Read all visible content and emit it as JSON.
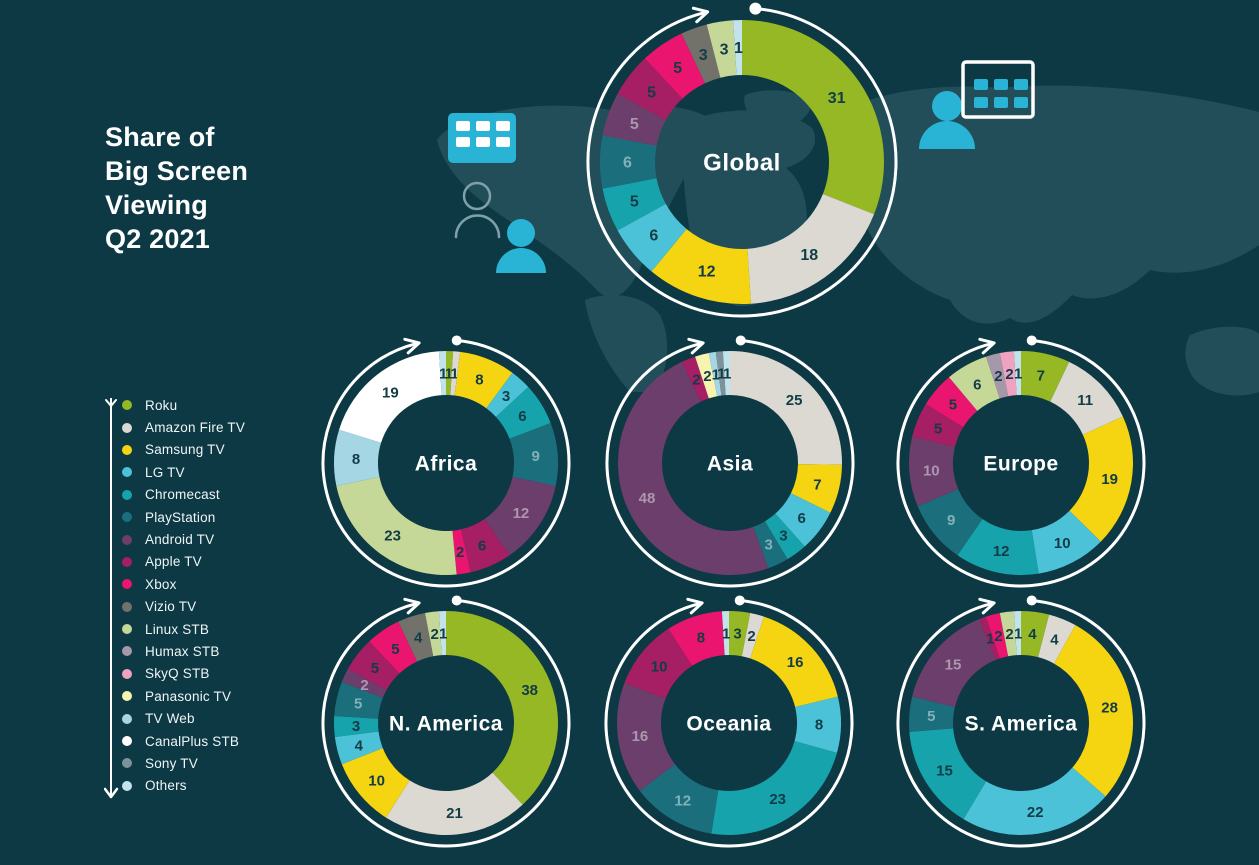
{
  "title": {
    "text": "Share of\nBig Screen\nViewing\nQ2 2021"
  },
  "colors": {
    "background": "#0d3944",
    "map": "#224e5a",
    "ring": "#ffffff",
    "icon_cyan": "#29b4d6",
    "person_outline": "#7fa0a8",
    "value_label_dark": "#123c46",
    "value_label_light": "rgba(255,255,255,0.45)",
    "region_label": "#ffffff"
  },
  "devices": [
    {
      "label": "Roku",
      "color": "#95b824"
    },
    {
      "label": "Amazon Fire TV",
      "color": "#dbd9d2"
    },
    {
      "label": "Samsung TV",
      "color": "#f5d411"
    },
    {
      "label": "LG TV",
      "color": "#4cc2d9"
    },
    {
      "label": "Chromecast",
      "color": "#16a3ac"
    },
    {
      "label": "PlayStation",
      "color": "#1b6f7d"
    },
    {
      "label": "Android TV",
      "color": "#6b3e6b"
    },
    {
      "label": "Apple TV",
      "color": "#a61e63"
    },
    {
      "label": "Xbox",
      "color": "#e9156f"
    },
    {
      "label": "Vizio TV",
      "color": "#72716a"
    },
    {
      "label": "Linux STB",
      "color": "#c5d897"
    },
    {
      "label": "Humax STB",
      "color": "#a697a9"
    },
    {
      "label": "SkyQ STB",
      "color": "#efa3c0"
    },
    {
      "label": "Panasonic TV",
      "color": "#f8f3b0"
    },
    {
      "label": "TV Web",
      "color": "#a4d6e4"
    },
    {
      "label": "CanalPlus STB",
      "color": "#ffffff"
    },
    {
      "label": "Sony TV",
      "color": "#7e929b"
    },
    {
      "label": "Others",
      "color": "#c2e3ec"
    }
  ],
  "light_text_devices": [
    "PlayStation",
    "Android TV"
  ],
  "icons": [
    "remote-keypad-icon",
    "person-icon",
    "person-outline-icon",
    "remote-keypad-outline-icon",
    "legend-arrow-line",
    "ring-arrow"
  ],
  "chart_data": [
    {
      "type": "donut",
      "title": "Global",
      "categories": [
        "Roku",
        "Amazon Fire TV",
        "Samsung TV",
        "LG TV",
        "Chromecast",
        "PlayStation",
        "Android TV",
        "Apple TV",
        "Xbox",
        "Vizio TV",
        "Linux STB",
        "Others"
      ],
      "values": [
        31,
        18,
        12,
        6,
        5,
        6,
        5,
        5,
        5,
        3,
        3,
        1
      ]
    },
    {
      "type": "donut",
      "title": "Africa",
      "categories": [
        "Roku",
        "Amazon Fire TV",
        "Samsung TV",
        "LG TV",
        "Chromecast",
        "PlayStation",
        "Android TV",
        "Apple TV",
        "Xbox",
        "Linux STB",
        "TV Web",
        "CanalPlus STB",
        "Others"
      ],
      "values": [
        1,
        1,
        8,
        3,
        6,
        9,
        12,
        6,
        2,
        23,
        8,
        19,
        1
      ]
    },
    {
      "type": "donut",
      "title": "Asia",
      "categories": [
        "Amazon Fire TV",
        "Samsung TV",
        "LG TV",
        "Chromecast",
        "PlayStation",
        "Android TV",
        "Apple TV",
        "Panasonic TV",
        "TV Web",
        "Sony TV",
        "Others"
      ],
      "values": [
        25,
        7,
        6,
        3,
        3,
        48,
        2,
        2,
        1,
        1,
        1
      ]
    },
    {
      "type": "donut",
      "title": "Europe",
      "categories": [
        "Roku",
        "Amazon Fire TV",
        "Samsung TV",
        "LG TV",
        "Chromecast",
        "PlayStation",
        "Android TV",
        "Apple TV",
        "Xbox",
        "Linux STB",
        "Humax STB",
        "SkyQ STB",
        "Others"
      ],
      "values": [
        7,
        11,
        19,
        10,
        12,
        9,
        10,
        5,
        5,
        6,
        2,
        2,
        1
      ]
    },
    {
      "type": "donut",
      "title": "N. America",
      "categories": [
        "Roku",
        "Amazon Fire TV",
        "Samsung TV",
        "LG TV",
        "Chromecast",
        "PlayStation",
        "Android TV",
        "Apple TV",
        "Xbox",
        "Vizio TV",
        "Linux STB",
        "Others"
      ],
      "values": [
        38,
        21,
        10,
        4,
        3,
        5,
        2,
        5,
        5,
        4,
        2,
        1
      ]
    },
    {
      "type": "donut",
      "title": "Oceania",
      "categories": [
        "Roku",
        "Amazon Fire TV",
        "Samsung TV",
        "LG TV",
        "Chromecast",
        "PlayStation",
        "Android TV",
        "Apple TV",
        "Xbox",
        "Others"
      ],
      "values": [
        3,
        2,
        16,
        8,
        23,
        12,
        16,
        10,
        8,
        1
      ]
    },
    {
      "type": "donut",
      "title": "S. America",
      "categories": [
        "Roku",
        "Amazon Fire TV",
        "Samsung TV",
        "LG TV",
        "Chromecast",
        "PlayStation",
        "Android TV",
        "Apple TV",
        "Xbox",
        "Linux STB",
        "Others"
      ],
      "values": [
        4,
        4,
        28,
        22,
        15,
        5,
        15,
        1,
        2,
        2,
        1
      ]
    }
  ]
}
